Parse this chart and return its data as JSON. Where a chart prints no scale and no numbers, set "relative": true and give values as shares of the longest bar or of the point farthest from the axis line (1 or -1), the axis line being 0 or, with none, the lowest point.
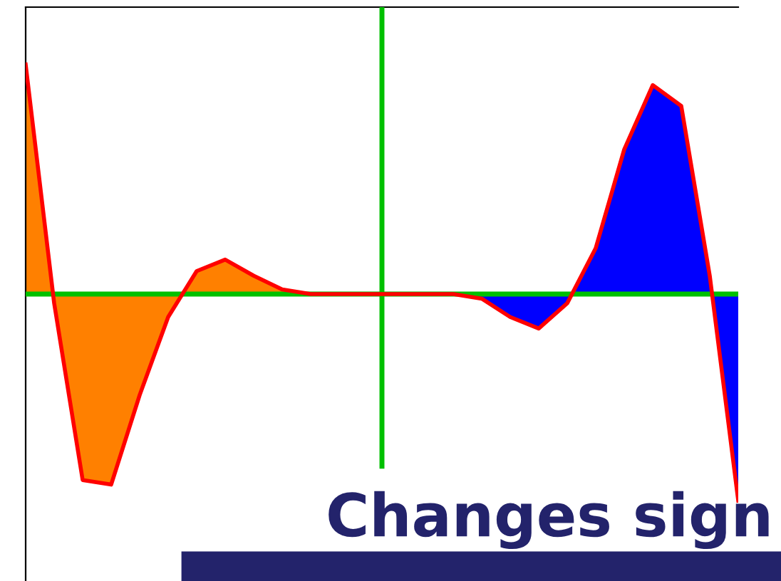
{
  "chart_data": {
    "type": "area",
    "relative": true,
    "categories": [
      null,
      null,
      null,
      null,
      null,
      null,
      null,
      null,
      null,
      null,
      null,
      null,
      null,
      null,
      null,
      null,
      null,
      null,
      null,
      null,
      null,
      null,
      null,
      null,
      null,
      null
    ],
    "series": [
      {
        "color": "#ff8000",
        "values": [
          1.0,
          -0.04,
          -0.81,
          -0.83,
          -0.44,
          -0.1,
          0.1,
          0.15,
          0.08,
          0.02,
          0,
          null,
          null,
          null,
          null,
          null,
          null,
          null,
          null,
          null,
          null,
          null,
          null,
          null,
          null,
          null
        ]
      },
      {
        "color": "#0000ff",
        "values": [
          null,
          null,
          null,
          null,
          null,
          null,
          null,
          null,
          null,
          null,
          null,
          0,
          0,
          0,
          0,
          0,
          -0.02,
          -0.1,
          -0.15,
          -0.04,
          0.2,
          0.63,
          0.91,
          0.82,
          0.08,
          -0.9
        ]
      },
      {
        "type": "line",
        "color": "#ff0000",
        "values": [
          1.0,
          -0.04,
          -0.81,
          -0.83,
          -0.44,
          -0.1,
          0.1,
          0.15,
          0.08,
          0.02,
          0,
          0,
          0,
          0,
          0,
          0,
          -0.02,
          -0.1,
          -0.15,
          -0.04,
          0.2,
          0.63,
          0.91,
          0.82,
          0.08,
          -0.9
        ]
      }
    ],
    "ref_lines": [
      {
        "axis": "y",
        "value": 0,
        "color": "#00c000"
      }
    ],
    "annotations": [
      "Changes sign"
    ],
    "legend": false,
    "marker": "none",
    "line_style": "solid"
  }
}
